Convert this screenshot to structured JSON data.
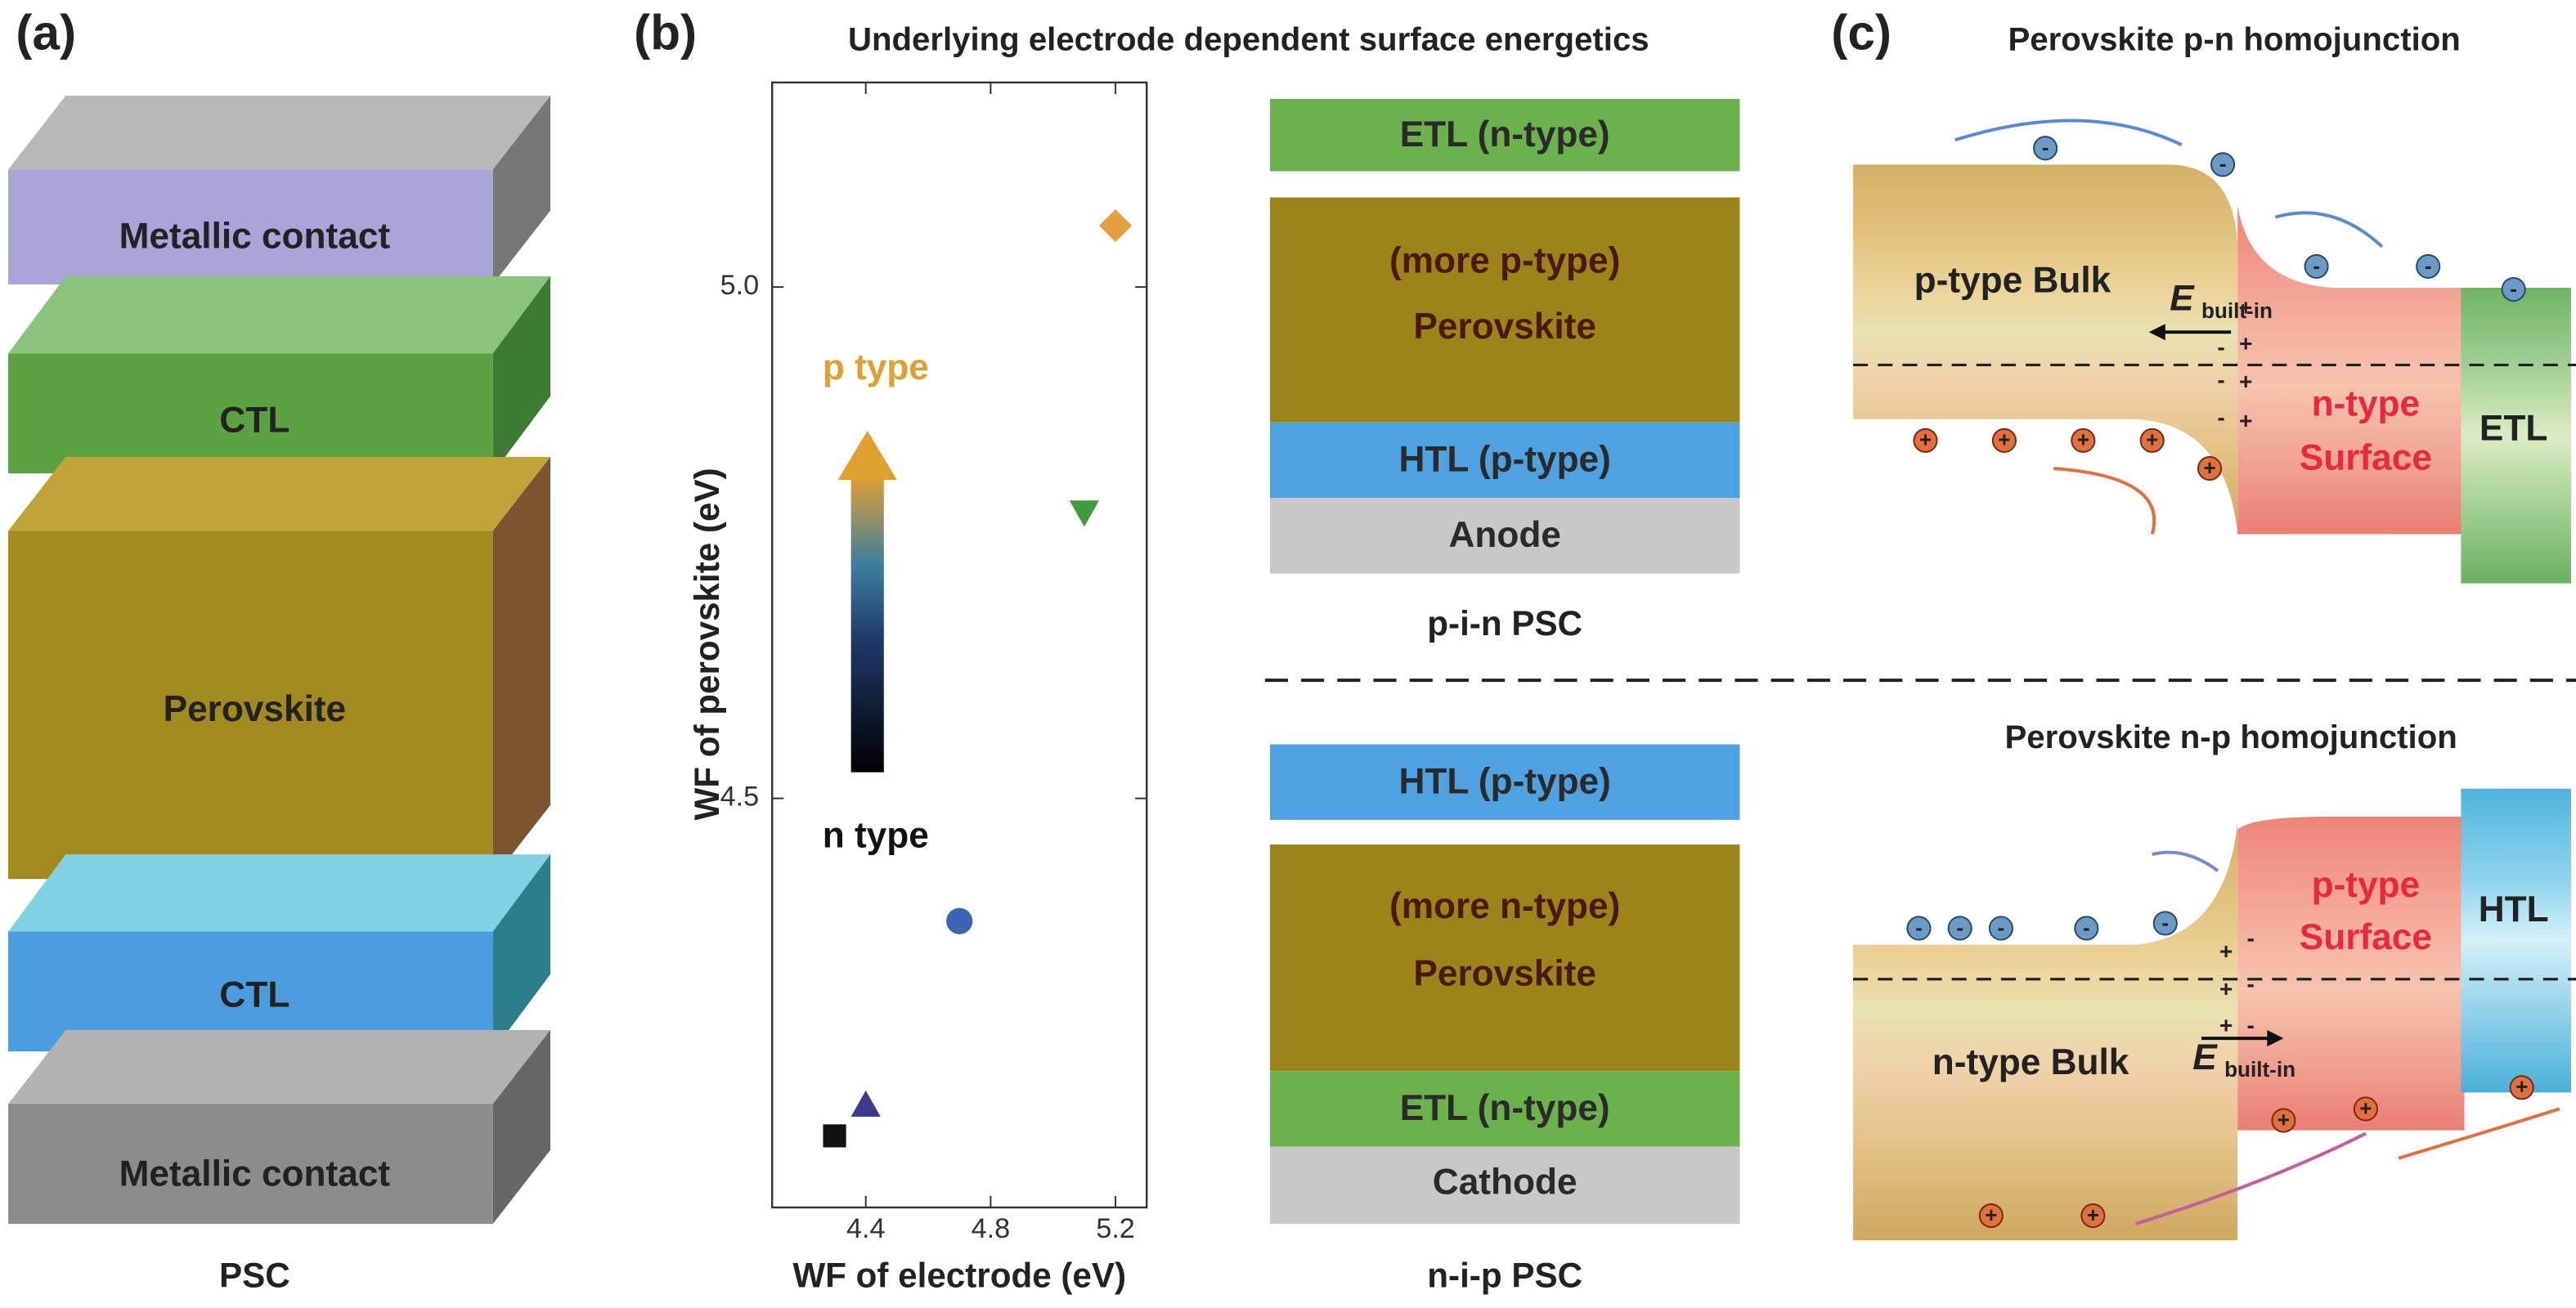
{
  "panel_a": {
    "label": "(a)",
    "layers": [
      "Metallic contact",
      "CTL",
      "Perovskite",
      "CTL",
      "Metallic contact"
    ],
    "caption": "PSC"
  },
  "panel_b": {
    "label": "(b)",
    "title": "Underlying electrode dependent surface energetics",
    "p_type": "p type",
    "n_type": "n type",
    "pin": {
      "layers": [
        "ETL (n-type)",
        [
          "(more p-type)",
          "Perovskite"
        ],
        "HTL (p-type)",
        "Anode"
      ],
      "caption": "p-i-n PSC"
    },
    "nip": {
      "layers": [
        "HTL (p-type)",
        [
          "(more n-type)",
          "Perovskite"
        ],
        "ETL (n-type)",
        "Cathode"
      ],
      "caption": "n-i-p PSC"
    }
  },
  "chart_data": {
    "type": "scatter",
    "x_label": "WF of electrode (eV)",
    "y_label": "WF of perovskite (eV)",
    "x": [
      4.3,
      4.4,
      4.7,
      5.1,
      5.2
    ],
    "values": [
      4.17,
      4.2,
      4.38,
      4.78,
      5.06
    ],
    "markers": [
      "square",
      "triangle",
      "circle",
      "triangle-down",
      "diamond"
    ],
    "colors": [
      "#111111",
      "#3b3a8f",
      "#3d63b5",
      "#3f9c3a",
      "#e3a03e"
    ],
    "xlim": [
      4.1,
      5.3
    ],
    "ylim": [
      4.1,
      5.2
    ],
    "xticks": [
      4.4,
      4.8,
      5.2
    ],
    "yticks": [
      4.5,
      {
        "value": 5,
        "label": "5.0"
      }
    ]
  },
  "panel_c": {
    "label": "(c)",
    "top": {
      "title": "Perovskite p-n homojunction",
      "bulk": "p-type Bulk",
      "field": "E",
      "field_sub": "built-in",
      "surface_type": "n-type",
      "surface": "Surface",
      "contact": "ETL"
    },
    "bottom": {
      "title": "Perovskite n-p homojunction",
      "bulk": "n-type Bulk",
      "field": "E",
      "field_sub": "built-in",
      "surface_type": "p-type",
      "surface": "Surface",
      "contact": "HTL"
    },
    "electron": "-",
    "hole": "+"
  }
}
